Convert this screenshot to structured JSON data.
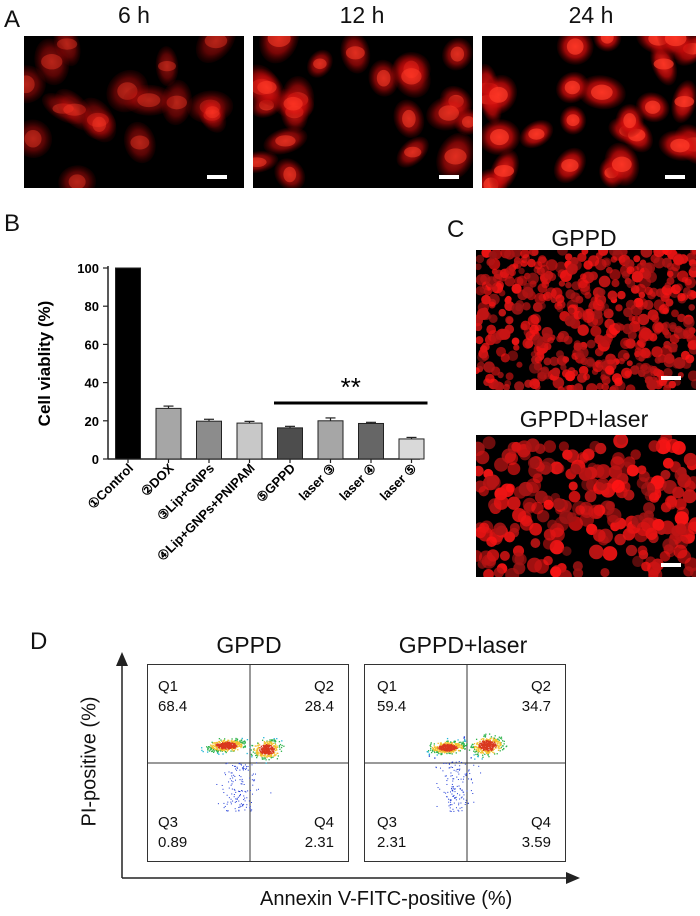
{
  "panel_a": {
    "letter": "A",
    "images": [
      {
        "label": "6 h",
        "intensity": 0.55
      },
      {
        "label": "12 h",
        "intensity": 0.75
      },
      {
        "label": "24 h",
        "intensity": 0.95
      }
    ]
  },
  "panel_b": {
    "letter": "B",
    "significance": "**"
  },
  "panel_c": {
    "letter": "C",
    "images": [
      {
        "label": "GPPD"
      },
      {
        "label": "GPPD+laser"
      }
    ]
  },
  "panel_d": {
    "letter": "D",
    "xlabel": "Annexin V-FITC-positive (%)",
    "ylabel": "PI-positive (%)",
    "plots": [
      {
        "title": "GPPD",
        "quadrants": [
          {
            "name": "Q1",
            "value": "68.4"
          },
          {
            "name": "Q2",
            "value": "28.4"
          },
          {
            "name": "Q3",
            "value": "0.89"
          },
          {
            "name": "Q4",
            "value": "2.31"
          }
        ]
      },
      {
        "title": "GPPD+laser",
        "quadrants": [
          {
            "name": "Q1",
            "value": "59.4"
          },
          {
            "name": "Q2",
            "value": "34.7"
          },
          {
            "name": "Q3",
            "value": "2.31"
          },
          {
            "name": "Q4",
            "value": "3.59"
          }
        ]
      }
    ]
  },
  "chart_data": {
    "type": "bar",
    "ylabel": "Cell viablity (%)",
    "ylim": [
      0,
      100
    ],
    "yticks": [
      0,
      20,
      40,
      60,
      80,
      100
    ],
    "categories": [
      "①Control",
      "②DOX",
      "③Lip+GNPs",
      "④Lip+GNPs+PNIPAM",
      "⑤GPPD",
      "laser ③",
      "laser ④",
      "laser ⑤"
    ],
    "values": [
      100,
      26.5,
      19.8,
      18.8,
      16.3,
      20.0,
      18.6,
      10.5
    ],
    "errors": [
      0,
      1.2,
      1.0,
      0.9,
      0.8,
      1.5,
      0.6,
      0.8
    ],
    "colors": [
      "#000000",
      "#a6a6a6",
      "#8c8c8c",
      "#c8c8c8",
      "#4d4d4d",
      "#a6a6a6",
      "#666666",
      "#d9d9d9"
    ]
  }
}
